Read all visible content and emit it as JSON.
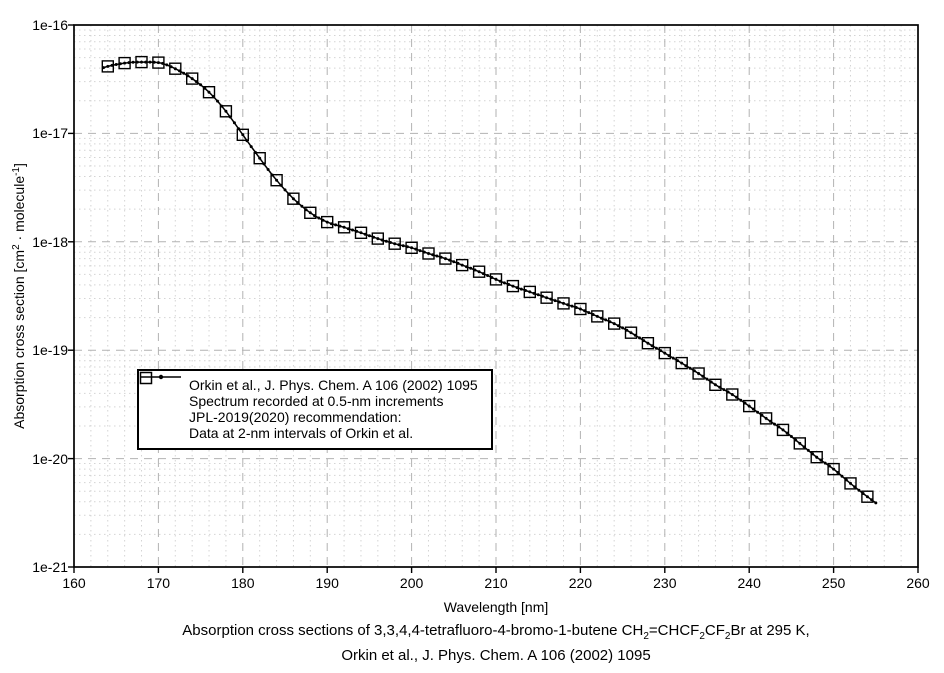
{
  "figure": {
    "background": "#ffffff",
    "caption_line1_segments": [
      {
        "t": "Absorption cross sections of 3,3,4,4-tetrafluoro-4-bromo-1-butene CH"
      },
      {
        "t": "2",
        "sub": true
      },
      {
        "t": "=CHCF"
      },
      {
        "t": "2",
        "sub": true
      },
      {
        "t": "CF"
      },
      {
        "t": "2",
        "sub": true
      },
      {
        "t": "Br at 295 K,"
      }
    ],
    "caption_line2": "Orkin et al., J. Phys. Chem. A 106 (2002) 1095"
  },
  "legend": {
    "entries": [
      {
        "marker": "line-dot",
        "label": "Orkin et al., J. Phys. Chem. A 106 (2002) 1095",
        "sublabel": "Spectrum recorded at 0.5-nm increments"
      },
      {
        "marker": "open-square",
        "label": "JPL-2019(2020) recommendation:",
        "sublabel": "Data at 2-nm intervals of Orkin et al."
      }
    ]
  },
  "chart_data": {
    "type": "line",
    "title": "",
    "xlabel": "Wavelength [nm]",
    "ylabel": "Absorption cross section [cm2 · molecule-1]",
    "ylabel_segments": [
      {
        "t": "Absorption cross section [cm"
      },
      {
        "t": "2",
        "sup": true
      },
      {
        "t": " · molecule"
      },
      {
        "t": "-1",
        "sup": true
      },
      {
        "t": "]"
      }
    ],
    "x_axis": {
      "min": 160,
      "max": 260,
      "ticks": [
        160,
        170,
        180,
        190,
        200,
        210,
        220,
        230,
        240,
        250,
        260
      ],
      "minor_step_nm": 2
    },
    "y_axis": {
      "scale": "log",
      "min": 1e-21,
      "max": 1e-16,
      "tick_labels": [
        "1e-16",
        "1e-17",
        "1e-18",
        "1e-19",
        "1e-20",
        "1e-21"
      ],
      "minor_mantissas": [
        2,
        3,
        4,
        5,
        6,
        7,
        8,
        9
      ]
    },
    "grid": {
      "major": true,
      "minor": true,
      "legend_position": "inside-left-middle"
    },
    "colors": {
      "series": "#000000",
      "major_grid": "#b2b2b2",
      "minor_grid": "#d4d4d4",
      "frame": "#000000"
    },
    "series": [
      {
        "name": "Orkin et al., J. Phys. Chem. A 106 (2002) 1095",
        "note": "Spectrum recorded at 0.5-nm increments",
        "style": "solid line with small filled dot markers every 0.5 nm",
        "x_start_nm": 163.5,
        "x_end_nm": 255,
        "x_step_nm": 0.5,
        "start_value_cm2": 4.05e-17,
        "end_value_cm2": 3.9e-21
      },
      {
        "name": "JPL-2019(2020) recommendation:",
        "note": "Data at 2-nm intervals of Orkin et al.",
        "style": "open square markers",
        "wavelengths_nm": [
          164,
          166,
          168,
          170,
          172,
          174,
          176,
          178,
          180,
          182,
          184,
          186,
          188,
          190,
          192,
          194,
          196,
          198,
          200,
          202,
          204,
          206,
          208,
          210,
          212,
          214,
          216,
          218,
          220,
          222,
          224,
          226,
          228,
          230,
          232,
          234,
          236,
          238,
          240,
          242,
          244,
          246,
          248,
          250,
          252,
          254
        ],
        "cross_sections_cm2": [
          4.15e-17,
          4.45e-17,
          4.55e-17,
          4.5e-17,
          3.95e-17,
          3.2e-17,
          2.4e-17,
          1.6e-17,
          9.7e-18,
          5.9e-18,
          3.7e-18,
          2.5e-18,
          1.85e-18,
          1.52e-18,
          1.36e-18,
          1.21e-18,
          1.07e-18,
          9.6e-19,
          8.8e-19,
          7.8e-19,
          7e-19,
          6.1e-19,
          5.3e-19,
          4.5e-19,
          3.9e-19,
          3.45e-19,
          3.05e-19,
          2.7e-19,
          2.4e-19,
          2.05e-19,
          1.76e-19,
          1.45e-19,
          1.16e-19,
          9.4e-20,
          7.6e-20,
          6.1e-20,
          4.8e-20,
          3.9e-20,
          3.05e-20,
          2.35e-20,
          1.84e-20,
          1.38e-20,
          1.03e-20,
          8e-21,
          5.9e-21,
          4.45e-21
        ]
      }
    ]
  }
}
